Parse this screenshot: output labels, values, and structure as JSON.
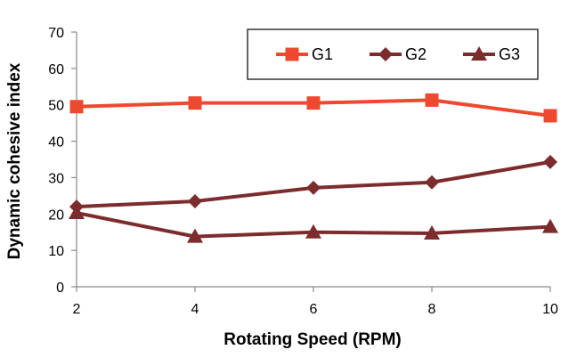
{
  "chart_data": {
    "type": "line",
    "title": "",
    "xlabel": "Rotating Speed (RPM)",
    "ylabel": "Dynamic cohesive index",
    "x": [
      2,
      4,
      6,
      8,
      10
    ],
    "xticks": [
      "2",
      "4",
      "6",
      "8",
      "10"
    ],
    "yticks": [
      "0",
      "10",
      "20",
      "30",
      "40",
      "50",
      "60",
      "70"
    ],
    "ylim": [
      0,
      70
    ],
    "grid": false,
    "legend_position": "top-right",
    "series": [
      {
        "name": "G1",
        "values": [
          49.5,
          50.5,
          50.5,
          51.3,
          47.0
        ],
        "color": "#EE4930",
        "marker": "square"
      },
      {
        "name": "G2",
        "values": [
          22.0,
          23.5,
          27.2,
          28.7,
          34.3
        ],
        "color": "#7C2C2C",
        "marker": "diamond"
      },
      {
        "name": "G3",
        "values": [
          20.3,
          13.8,
          15.0,
          14.7,
          16.5
        ],
        "color": "#7C2C2C",
        "marker": "triangle"
      }
    ]
  }
}
